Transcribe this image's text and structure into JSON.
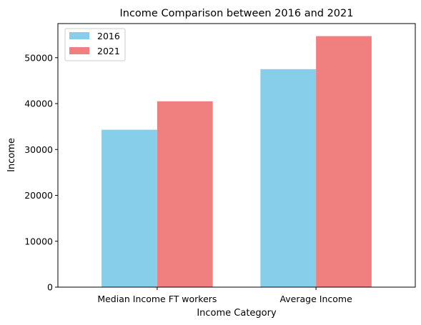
{
  "chart_data": {
    "type": "bar",
    "title": "Income Comparison between 2016 and 2021",
    "xlabel": "Income Category",
    "ylabel": "Income",
    "categories": [
      "Median Income FT workers",
      "Average Income"
    ],
    "series": [
      {
        "name": "2016",
        "values": [
          34300,
          47500
        ],
        "color": "#87ceeb"
      },
      {
        "name": "2021",
        "values": [
          40500,
          54700
        ],
        "color": "#f08080"
      }
    ],
    "ylim": [
      0,
      57435
    ],
    "yticks": [
      0,
      10000,
      20000,
      30000,
      40000,
      50000
    ],
    "grid": false,
    "legend_position": "upper-left"
  }
}
